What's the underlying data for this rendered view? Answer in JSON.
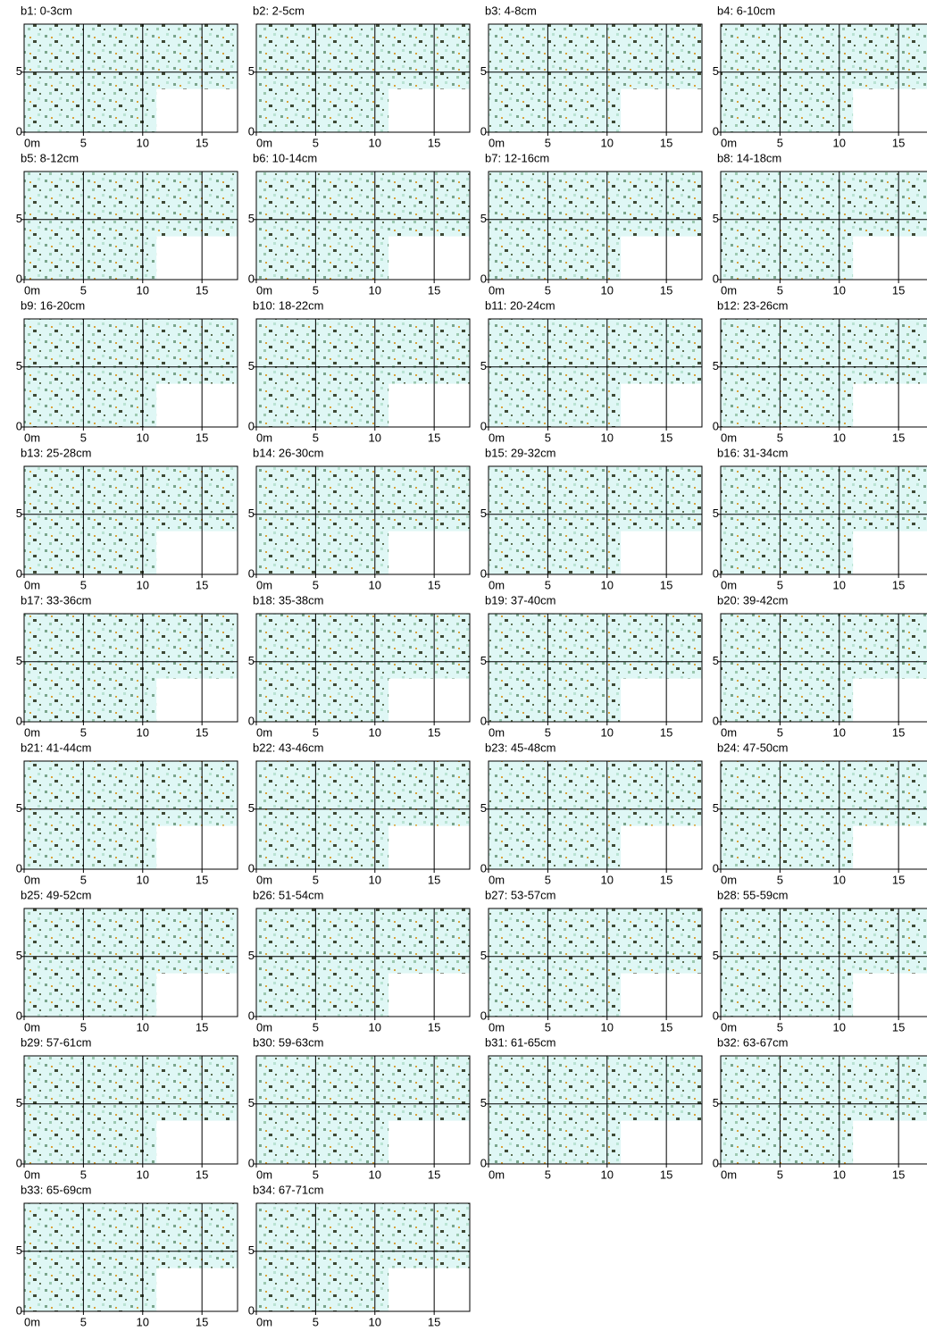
{
  "chart_data": [
    {
      "type": "heatmap",
      "title": "b1: 0-3cm",
      "xlim": [
        0,
        18
      ],
      "ylim": [
        0,
        9
      ],
      "xticks": [
        {
          "value": 0,
          "label": "0m"
        },
        5,
        10,
        15
      ],
      "yticks": [
        0,
        5
      ]
    },
    {
      "type": "heatmap",
      "title": "b2: 2-5cm",
      "xlim": [
        0,
        18
      ],
      "ylim": [
        0,
        9
      ],
      "xticks": [
        {
          "value": 0,
          "label": "0m"
        },
        5,
        10,
        15
      ],
      "yticks": [
        0,
        5
      ]
    },
    {
      "type": "heatmap",
      "title": "b3: 4-8cm",
      "xlim": [
        0,
        18
      ],
      "ylim": [
        0,
        9
      ],
      "xticks": [
        {
          "value": 0,
          "label": "0m"
        },
        5,
        10,
        15
      ],
      "yticks": [
        0,
        5
      ]
    },
    {
      "type": "heatmap",
      "title": "b4: 6-10cm",
      "xlim": [
        0,
        18
      ],
      "ylim": [
        0,
        9
      ],
      "xticks": [
        {
          "value": 0,
          "label": "0m"
        },
        5,
        10,
        15
      ],
      "yticks": [
        0,
        5
      ]
    },
    {
      "type": "heatmap",
      "title": "b5: 8-12cm",
      "xlim": [
        0,
        18
      ],
      "ylim": [
        0,
        9
      ],
      "xticks": [
        {
          "value": 0,
          "label": "0m"
        },
        5,
        10,
        15
      ],
      "yticks": [
        0,
        5
      ]
    },
    {
      "type": "heatmap",
      "title": "b6: 10-14cm",
      "xlim": [
        0,
        18
      ],
      "ylim": [
        0,
        9
      ],
      "xticks": [
        {
          "value": 0,
          "label": "0m"
        },
        5,
        10,
        15
      ],
      "yticks": [
        0,
        5
      ]
    },
    {
      "type": "heatmap",
      "title": "b7: 12-16cm",
      "xlim": [
        0,
        18
      ],
      "ylim": [
        0,
        9
      ],
      "xticks": [
        {
          "value": 0,
          "label": "0m"
        },
        5,
        10,
        15
      ],
      "yticks": [
        0,
        5
      ]
    },
    {
      "type": "heatmap",
      "title": "b8: 14-18cm",
      "xlim": [
        0,
        18
      ],
      "ylim": [
        0,
        9
      ],
      "xticks": [
        {
          "value": 0,
          "label": "0m"
        },
        5,
        10,
        15
      ],
      "yticks": [
        0,
        5
      ]
    },
    {
      "type": "heatmap",
      "title": "b9: 16-20cm",
      "xlim": [
        0,
        18
      ],
      "ylim": [
        0,
        9
      ],
      "xticks": [
        {
          "value": 0,
          "label": "0m"
        },
        5,
        10,
        15
      ],
      "yticks": [
        0,
        5
      ]
    },
    {
      "type": "heatmap",
      "title": "b10: 18-22cm",
      "xlim": [
        0,
        18
      ],
      "ylim": [
        0,
        9
      ],
      "xticks": [
        {
          "value": 0,
          "label": "0m"
        },
        5,
        10,
        15
      ],
      "yticks": [
        0,
        5
      ]
    },
    {
      "type": "heatmap",
      "title": "b11: 20-24cm",
      "xlim": [
        0,
        18
      ],
      "ylim": [
        0,
        9
      ],
      "xticks": [
        {
          "value": 0,
          "label": "0m"
        },
        5,
        10,
        15
      ],
      "yticks": [
        0,
        5
      ]
    },
    {
      "type": "heatmap",
      "title": "b12: 23-26cm",
      "xlim": [
        0,
        18
      ],
      "ylim": [
        0,
        9
      ],
      "xticks": [
        {
          "value": 0,
          "label": "0m"
        },
        5,
        10,
        15
      ],
      "yticks": [
        0,
        5
      ]
    },
    {
      "type": "heatmap",
      "title": "b13: 25-28cm",
      "xlim": [
        0,
        18
      ],
      "ylim": [
        0,
        9
      ],
      "xticks": [
        {
          "value": 0,
          "label": "0m"
        },
        5,
        10,
        15
      ],
      "yticks": [
        0,
        5
      ]
    },
    {
      "type": "heatmap",
      "title": "b14: 26-30cm",
      "xlim": [
        0,
        18
      ],
      "ylim": [
        0,
        9
      ],
      "xticks": [
        {
          "value": 0,
          "label": "0m"
        },
        5,
        10,
        15
      ],
      "yticks": [
        0,
        5
      ]
    },
    {
      "type": "heatmap",
      "title": "b15: 29-32cm",
      "xlim": [
        0,
        18
      ],
      "ylim": [
        0,
        9
      ],
      "xticks": [
        {
          "value": 0,
          "label": "0m"
        },
        5,
        10,
        15
      ],
      "yticks": [
        0,
        5
      ]
    },
    {
      "type": "heatmap",
      "title": "b16: 31-34cm",
      "xlim": [
        0,
        18
      ],
      "ylim": [
        0,
        9
      ],
      "xticks": [
        {
          "value": 0,
          "label": "0m"
        },
        5,
        10,
        15
      ],
      "yticks": [
        0,
        5
      ]
    },
    {
      "type": "heatmap",
      "title": "b17: 33-36cm",
      "xlim": [
        0,
        18
      ],
      "ylim": [
        0,
        9
      ],
      "xticks": [
        {
          "value": 0,
          "label": "0m"
        },
        5,
        10,
        15
      ],
      "yticks": [
        0,
        5
      ]
    },
    {
      "type": "heatmap",
      "title": "b18: 35-38cm",
      "xlim": [
        0,
        18
      ],
      "ylim": [
        0,
        9
      ],
      "xticks": [
        {
          "value": 0,
          "label": "0m"
        },
        5,
        10,
        15
      ],
      "yticks": [
        0,
        5
      ]
    },
    {
      "type": "heatmap",
      "title": "b19: 37-40cm",
      "xlim": [
        0,
        18
      ],
      "ylim": [
        0,
        9
      ],
      "xticks": [
        {
          "value": 0,
          "label": "0m"
        },
        5,
        10,
        15
      ],
      "yticks": [
        0,
        5
      ]
    },
    {
      "type": "heatmap",
      "title": "b20: 39-42cm",
      "xlim": [
        0,
        18
      ],
      "ylim": [
        0,
        9
      ],
      "xticks": [
        {
          "value": 0,
          "label": "0m"
        },
        5,
        10,
        15
      ],
      "yticks": [
        0,
        5
      ]
    },
    {
      "type": "heatmap",
      "title": "b21: 41-44cm",
      "xlim": [
        0,
        18
      ],
      "ylim": [
        0,
        9
      ],
      "xticks": [
        {
          "value": 0,
          "label": "0m"
        },
        5,
        10,
        15
      ],
      "yticks": [
        0,
        5
      ]
    },
    {
      "type": "heatmap",
      "title": "b22: 43-46cm",
      "xlim": [
        0,
        18
      ],
      "ylim": [
        0,
        9
      ],
      "xticks": [
        {
          "value": 0,
          "label": "0m"
        },
        5,
        10,
        15
      ],
      "yticks": [
        0,
        5
      ]
    },
    {
      "type": "heatmap",
      "title": "b23: 45-48cm",
      "xlim": [
        0,
        18
      ],
      "ylim": [
        0,
        9
      ],
      "xticks": [
        {
          "value": 0,
          "label": "0m"
        },
        5,
        10,
        15
      ],
      "yticks": [
        0,
        5
      ]
    },
    {
      "type": "heatmap",
      "title": "b24: 47-50cm",
      "xlim": [
        0,
        18
      ],
      "ylim": [
        0,
        9
      ],
      "xticks": [
        {
          "value": 0,
          "label": "0m"
        },
        5,
        10,
        15
      ],
      "yticks": [
        0,
        5
      ]
    },
    {
      "type": "heatmap",
      "title": "b25: 49-52cm",
      "xlim": [
        0,
        18
      ],
      "ylim": [
        0,
        9
      ],
      "xticks": [
        {
          "value": 0,
          "label": "0m"
        },
        5,
        10,
        15
      ],
      "yticks": [
        0,
        5
      ]
    },
    {
      "type": "heatmap",
      "title": "b26: 51-54cm",
      "xlim": [
        0,
        18
      ],
      "ylim": [
        0,
        9
      ],
      "xticks": [
        {
          "value": 0,
          "label": "0m"
        },
        5,
        10,
        15
      ],
      "yticks": [
        0,
        5
      ]
    },
    {
      "type": "heatmap",
      "title": "b27: 53-57cm",
      "xlim": [
        0,
        18
      ],
      "ylim": [
        0,
        9
      ],
      "xticks": [
        {
          "value": 0,
          "label": "0m"
        },
        5,
        10,
        15
      ],
      "yticks": [
        0,
        5
      ]
    },
    {
      "type": "heatmap",
      "title": "b28: 55-59cm",
      "xlim": [
        0,
        18
      ],
      "ylim": [
        0,
        9
      ],
      "xticks": [
        {
          "value": 0,
          "label": "0m"
        },
        5,
        10,
        15
      ],
      "yticks": [
        0,
        5
      ]
    },
    {
      "type": "heatmap",
      "title": "b29: 57-61cm",
      "xlim": [
        0,
        18
      ],
      "ylim": [
        0,
        9
      ],
      "xticks": [
        {
          "value": 0,
          "label": "0m"
        },
        5,
        10,
        15
      ],
      "yticks": [
        0,
        5
      ]
    },
    {
      "type": "heatmap",
      "title": "b30: 59-63cm",
      "xlim": [
        0,
        18
      ],
      "ylim": [
        0,
        9
      ],
      "xticks": [
        {
          "value": 0,
          "label": "0m"
        },
        5,
        10,
        15
      ],
      "yticks": [
        0,
        5
      ]
    },
    {
      "type": "heatmap",
      "title": "b31: 61-65cm",
      "xlim": [
        0,
        18
      ],
      "ylim": [
        0,
        9
      ],
      "xticks": [
        {
          "value": 0,
          "label": "0m"
        },
        5,
        10,
        15
      ],
      "yticks": [
        0,
        5
      ]
    },
    {
      "type": "heatmap",
      "title": "b32: 63-67cm",
      "xlim": [
        0,
        18
      ],
      "ylim": [
        0,
        9
      ],
      "xticks": [
        {
          "value": 0,
          "label": "0m"
        },
        5,
        10,
        15
      ],
      "yticks": [
        0,
        5
      ]
    },
    {
      "type": "heatmap",
      "title": "b33: 65-69cm",
      "xlim": [
        0,
        18
      ],
      "ylim": [
        0,
        9
      ],
      "xticks": [
        {
          "value": 0,
          "label": "0m"
        },
        5,
        10,
        15
      ],
      "yticks": [
        0,
        5
      ]
    },
    {
      "type": "heatmap",
      "title": "b34: 67-71cm",
      "xlim": [
        0,
        18
      ],
      "ylim": [
        0,
        9
      ],
      "xticks": [
        {
          "value": 0,
          "label": "0m"
        },
        5,
        10,
        15
      ],
      "yticks": [
        0,
        5
      ]
    }
  ]
}
